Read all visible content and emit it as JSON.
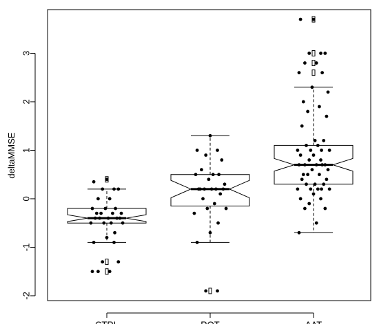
{
  "chart_data": {
    "type": "boxplot",
    "title": "",
    "xlabel": "",
    "ylabel": "deltaMMSE",
    "ylim": [
      -2.1,
      3.9
    ],
    "yticks": [
      -2,
      -1,
      0,
      1,
      2,
      3
    ],
    "ytick_labels": [
      "-2",
      "-1",
      "0",
      "1",
      "2",
      "3"
    ],
    "notched": true,
    "grid": false,
    "categories": [
      "CTRL",
      "ROT",
      "AAT"
    ],
    "boxes": [
      {
        "category": "CTRL",
        "whisker_low": -0.9,
        "q1": -0.5,
        "median": -0.4,
        "q3": -0.2,
        "whisker_high": 0.2,
        "notch_low": -0.47,
        "notch_high": -0.33,
        "outliers": [
          0.4,
          -1.3,
          -1.5
        ],
        "points": [
          0.4,
          0.35,
          0.2,
          0.2,
          0.2,
          0.0,
          0.0,
          -0.2,
          -0.2,
          -0.2,
          -0.3,
          -0.3,
          -0.3,
          -0.3,
          -0.4,
          -0.4,
          -0.4,
          -0.4,
          -0.4,
          -0.5,
          -0.5,
          -0.5,
          -0.5,
          -0.7,
          -0.8,
          -0.9,
          -0.9,
          -1.3,
          -1.3,
          -1.5,
          -1.5,
          -1.5
        ]
      },
      {
        "category": "ROT",
        "whisker_low": -0.9,
        "q1": -0.15,
        "median": 0.2,
        "q3": 0.5,
        "whisker_high": 1.3,
        "notch_low": 0.02,
        "notch_high": 0.38,
        "outliers": [
          -1.9
        ],
        "points": [
          1.3,
          1.0,
          1.0,
          0.9,
          0.8,
          0.6,
          0.5,
          0.5,
          0.5,
          0.4,
          0.3,
          0.2,
          0.2,
          0.2,
          0.2,
          0.2,
          0.2,
          0.1,
          0.0,
          -0.1,
          -0.2,
          -0.2,
          -0.3,
          -0.5,
          -0.7,
          -0.9,
          -1.9,
          -1.9
        ]
      },
      {
        "category": "AAT",
        "whisker_low": -0.7,
        "q1": 0.3,
        "median": 0.7,
        "q3": 1.1,
        "whisker_high": 2.3,
        "notch_low": 0.57,
        "notch_high": 0.83,
        "outliers": [
          3.7,
          3.0,
          2.8,
          2.6
        ],
        "points": [
          3.7,
          3.7,
          3.0,
          3.0,
          3.0,
          2.8,
          2.8,
          2.6,
          2.6,
          2.3,
          2.2,
          2.0,
          1.9,
          1.8,
          1.7,
          1.5,
          1.2,
          1.2,
          1.1,
          1.1,
          1.0,
          1.0,
          1.0,
          1.0,
          0.9,
          0.9,
          0.8,
          0.8,
          0.7,
          0.7,
          0.7,
          0.7,
          0.7,
          0.6,
          0.6,
          0.5,
          0.5,
          0.5,
          0.4,
          0.4,
          0.3,
          0.3,
          0.3,
          0.2,
          0.2,
          0.2,
          0.2,
          0.2,
          0.1,
          0.0,
          0.0,
          -0.1,
          -0.2,
          -0.2,
          -0.5,
          -0.7
        ]
      }
    ]
  }
}
